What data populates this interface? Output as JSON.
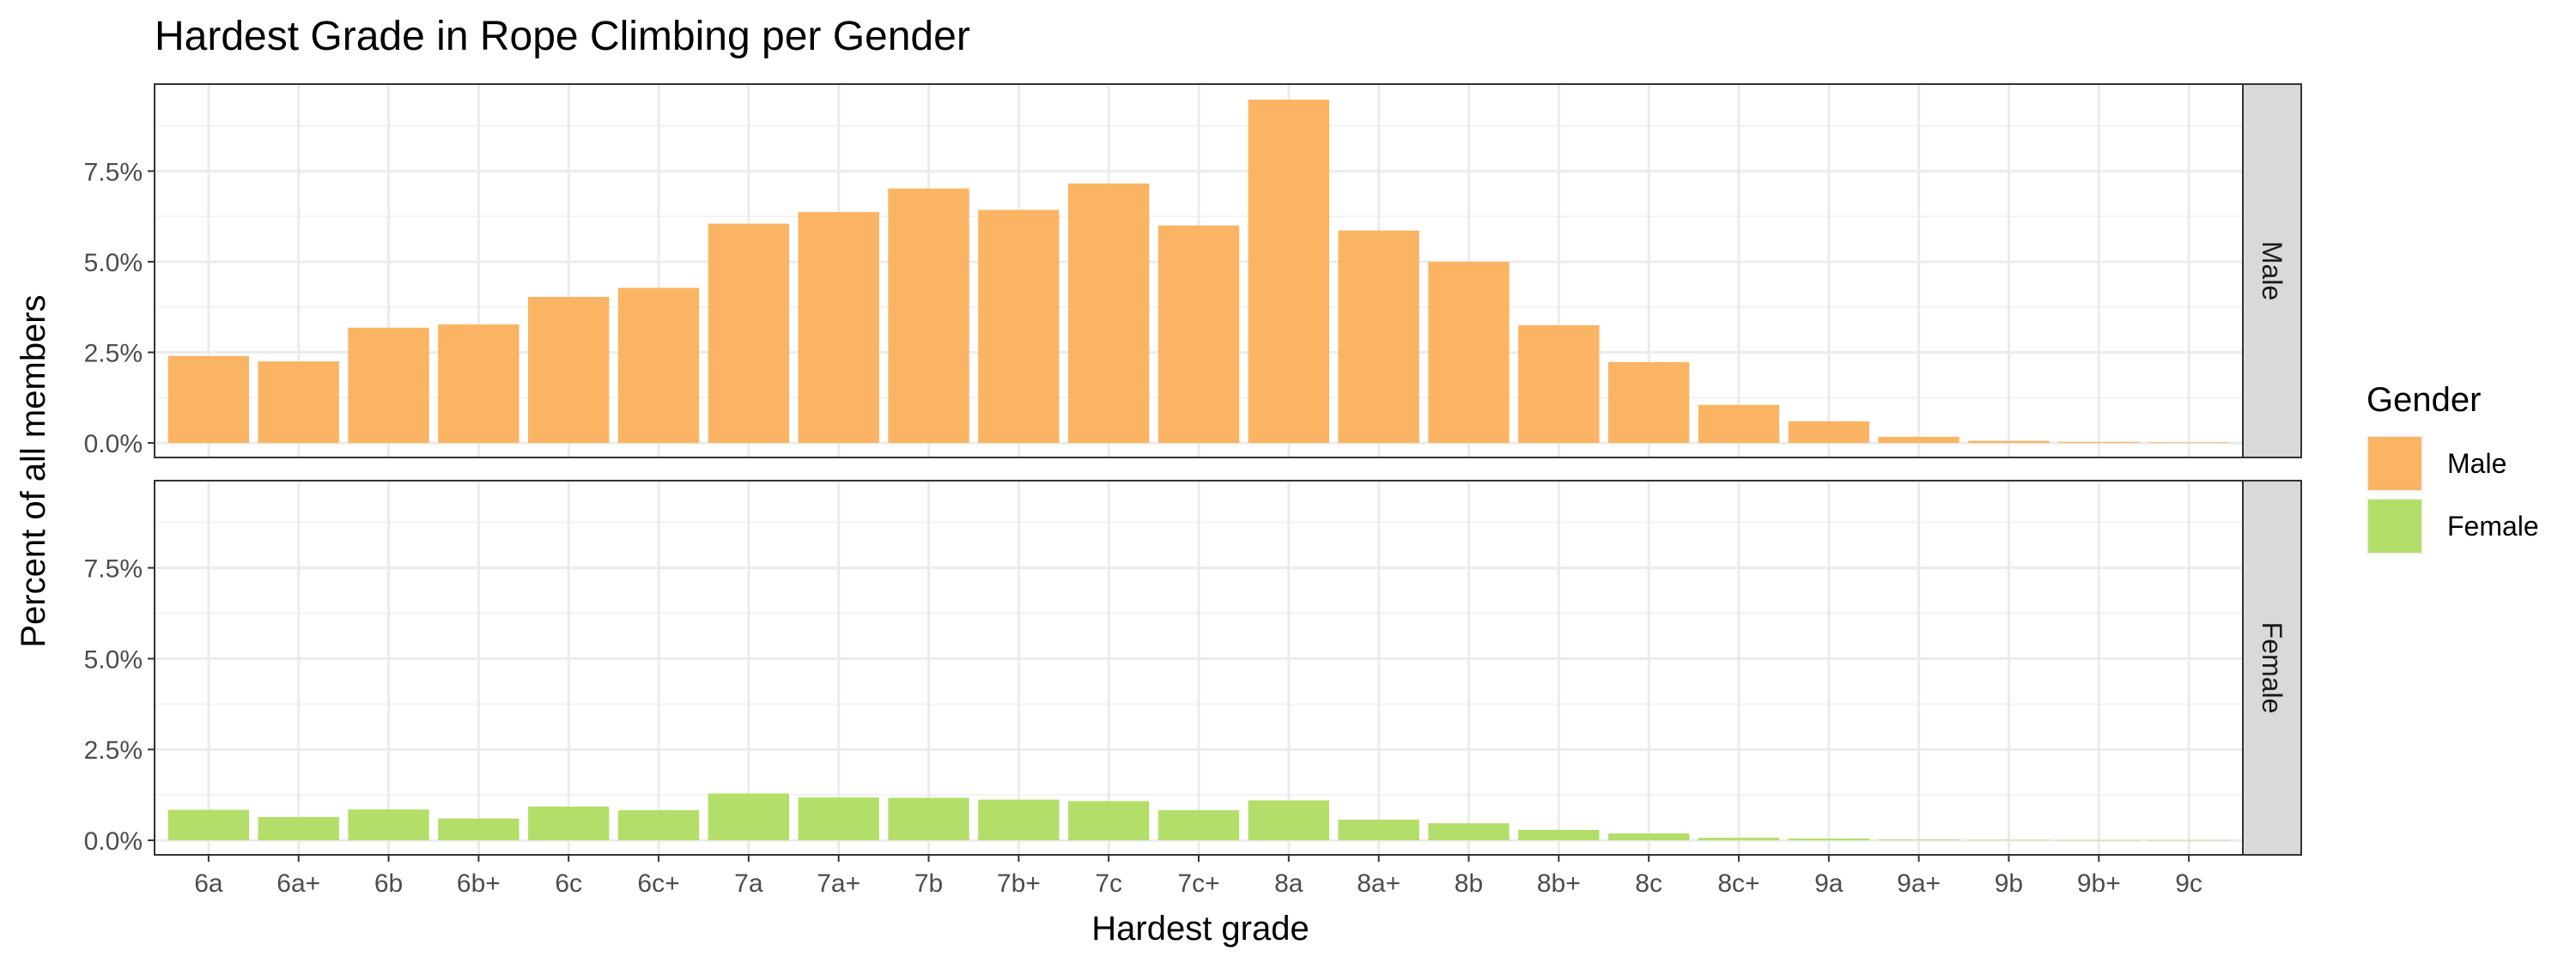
{
  "chart_data": {
    "type": "bar",
    "title": "Hardest Grade in Rope Climbing per Gender",
    "xlabel": "Hardest grade",
    "ylabel": "Percent of all members",
    "ylim": [
      -0.4,
      9.9
    ],
    "yticks": [
      "0.0%",
      "2.5%",
      "5.0%",
      "7.5%"
    ],
    "ytick_values": [
      0,
      2.5,
      5,
      7.5
    ],
    "grid": true,
    "legend_position": "right",
    "legend_title": "Gender",
    "categories": [
      "6a",
      "6a+",
      "6b",
      "6b+",
      "6c",
      "6c+",
      "7a",
      "7a+",
      "7b",
      "7b+",
      "7c",
      "7c+",
      "8a",
      "8a+",
      "8b",
      "8b+",
      "8c",
      "8c+",
      "9a",
      "9a+",
      "9b",
      "9b+",
      "9c"
    ],
    "series": [
      {
        "name": "Male",
        "color": "#FBB463",
        "values": [
          2.4,
          2.25,
          3.18,
          3.27,
          4.03,
          4.28,
          6.05,
          6.37,
          7.02,
          6.43,
          7.16,
          6.0,
          9.47,
          5.86,
          5.0,
          3.25,
          2.23,
          1.05,
          0.6,
          0.17,
          0.06,
          0.03,
          0.02
        ]
      },
      {
        "name": "Female",
        "color": "#B3DE69",
        "values": [
          0.84,
          0.64,
          0.85,
          0.6,
          0.93,
          0.83,
          1.29,
          1.18,
          1.17,
          1.12,
          1.08,
          0.83,
          1.1,
          0.57,
          0.47,
          0.29,
          0.19,
          0.07,
          0.05,
          0.02,
          0.01,
          0.005,
          0.005
        ]
      }
    ]
  }
}
